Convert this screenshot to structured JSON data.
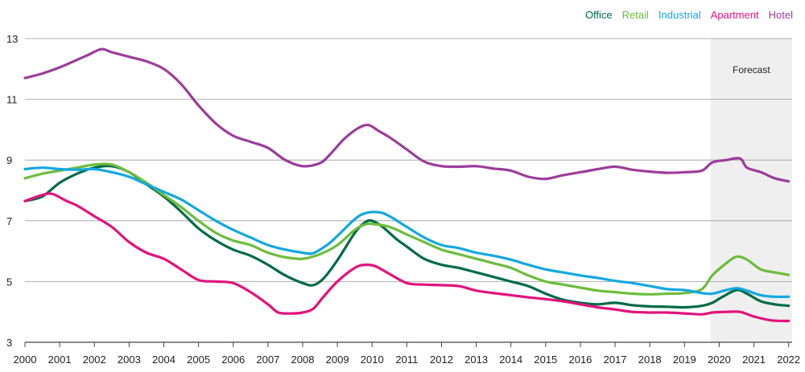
{
  "chart_data": {
    "type": "line",
    "title": "",
    "xlabel": "",
    "ylabel": "",
    "xlim": [
      2000,
      2022.1
    ],
    "ylim": [
      3,
      13
    ],
    "x_ticks": [
      "2000",
      "2001",
      "2002",
      "2003",
      "2004",
      "2005",
      "2006",
      "2007",
      "2008",
      "2009",
      "2010",
      "2011",
      "2012",
      "2013",
      "2014",
      "2015",
      "2016",
      "2017",
      "2018",
      "2019",
      "2020",
      "2021",
      "2022"
    ],
    "y_ticks": [
      "3",
      "5",
      "7",
      "9",
      "11",
      "13"
    ],
    "grid": "horizontal",
    "legend_position": "top-right",
    "forecast": {
      "label": "Forecast",
      "start": 2019.75,
      "end": 2022.1,
      "color": "#efefef"
    },
    "series": [
      {
        "name": "Office",
        "color": "#006b46",
        "points": [
          [
            2000,
            7.65
          ],
          [
            2000.5,
            7.8
          ],
          [
            2001,
            8.25
          ],
          [
            2001.5,
            8.55
          ],
          [
            2002,
            8.75
          ],
          [
            2002.5,
            8.8
          ],
          [
            2003,
            8.6
          ],
          [
            2003.5,
            8.2
          ],
          [
            2004,
            7.8
          ],
          [
            2004.5,
            7.3
          ],
          [
            2005,
            6.75
          ],
          [
            2005.5,
            6.35
          ],
          [
            2006,
            6.05
          ],
          [
            2006.5,
            5.85
          ],
          [
            2007,
            5.55
          ],
          [
            2007.5,
            5.2
          ],
          [
            2008,
            4.95
          ],
          [
            2008.3,
            4.88
          ],
          [
            2008.6,
            5.1
          ],
          [
            2009,
            5.7
          ],
          [
            2009.5,
            6.6
          ],
          [
            2009.8,
            6.95
          ],
          [
            2010,
            7.0
          ],
          [
            2010.3,
            6.8
          ],
          [
            2010.7,
            6.4
          ],
          [
            2011,
            6.15
          ],
          [
            2011.5,
            5.75
          ],
          [
            2012,
            5.55
          ],
          [
            2012.5,
            5.45
          ],
          [
            2013,
            5.3
          ],
          [
            2013.5,
            5.15
          ],
          [
            2014,
            5.0
          ],
          [
            2014.5,
            4.85
          ],
          [
            2015,
            4.6
          ],
          [
            2015.5,
            4.4
          ],
          [
            2016,
            4.3
          ],
          [
            2016.5,
            4.25
          ],
          [
            2017,
            4.3
          ],
          [
            2017.5,
            4.22
          ],
          [
            2018,
            4.18
          ],
          [
            2018.5,
            4.17
          ],
          [
            2019,
            4.15
          ],
          [
            2019.5,
            4.2
          ],
          [
            2019.8,
            4.3
          ],
          [
            2020.1,
            4.5
          ],
          [
            2020.5,
            4.72
          ],
          [
            2020.8,
            4.6
          ],
          [
            2021.2,
            4.35
          ],
          [
            2021.6,
            4.25
          ],
          [
            2022,
            4.2
          ]
        ]
      },
      {
        "name": "Retail",
        "color": "#6cbd3c",
        "points": [
          [
            2000,
            8.4
          ],
          [
            2000.5,
            8.55
          ],
          [
            2001,
            8.65
          ],
          [
            2001.5,
            8.75
          ],
          [
            2002,
            8.85
          ],
          [
            2002.5,
            8.85
          ],
          [
            2003,
            8.6
          ],
          [
            2003.5,
            8.25
          ],
          [
            2004,
            7.85
          ],
          [
            2004.5,
            7.45
          ],
          [
            2005,
            7.0
          ],
          [
            2005.5,
            6.6
          ],
          [
            2006,
            6.35
          ],
          [
            2006.5,
            6.2
          ],
          [
            2007,
            5.95
          ],
          [
            2007.5,
            5.8
          ],
          [
            2008,
            5.75
          ],
          [
            2008.5,
            5.9
          ],
          [
            2009,
            6.2
          ],
          [
            2009.5,
            6.7
          ],
          [
            2009.8,
            6.88
          ],
          [
            2010,
            6.9
          ],
          [
            2010.5,
            6.8
          ],
          [
            2011,
            6.55
          ],
          [
            2011.5,
            6.3
          ],
          [
            2012,
            6.05
          ],
          [
            2012.5,
            5.9
          ],
          [
            2013,
            5.75
          ],
          [
            2013.5,
            5.6
          ],
          [
            2014,
            5.45
          ],
          [
            2014.5,
            5.2
          ],
          [
            2015,
            5.0
          ],
          [
            2015.5,
            4.9
          ],
          [
            2016,
            4.8
          ],
          [
            2016.5,
            4.7
          ],
          [
            2017,
            4.65
          ],
          [
            2017.5,
            4.6
          ],
          [
            2018,
            4.58
          ],
          [
            2018.5,
            4.6
          ],
          [
            2019,
            4.62
          ],
          [
            2019.5,
            4.75
          ],
          [
            2019.8,
            5.2
          ],
          [
            2020.2,
            5.6
          ],
          [
            2020.5,
            5.82
          ],
          [
            2020.8,
            5.72
          ],
          [
            2021.2,
            5.4
          ],
          [
            2021.6,
            5.3
          ],
          [
            2022,
            5.22
          ]
        ]
      },
      {
        "name": "Industrial",
        "color": "#13a8e0",
        "points": [
          [
            2000,
            8.7
          ],
          [
            2000.5,
            8.75
          ],
          [
            2001,
            8.7
          ],
          [
            2001.5,
            8.68
          ],
          [
            2002,
            8.7
          ],
          [
            2002.5,
            8.6
          ],
          [
            2003,
            8.45
          ],
          [
            2003.5,
            8.2
          ],
          [
            2004,
            7.95
          ],
          [
            2004.5,
            7.7
          ],
          [
            2005,
            7.35
          ],
          [
            2005.5,
            7.0
          ],
          [
            2006,
            6.7
          ],
          [
            2006.5,
            6.45
          ],
          [
            2007,
            6.2
          ],
          [
            2007.5,
            6.05
          ],
          [
            2008,
            5.95
          ],
          [
            2008.3,
            5.93
          ],
          [
            2008.7,
            6.2
          ],
          [
            2009,
            6.5
          ],
          [
            2009.5,
            7.05
          ],
          [
            2009.8,
            7.25
          ],
          [
            2010.2,
            7.28
          ],
          [
            2010.5,
            7.15
          ],
          [
            2011,
            6.8
          ],
          [
            2011.5,
            6.45
          ],
          [
            2012,
            6.2
          ],
          [
            2012.5,
            6.1
          ],
          [
            2013,
            5.95
          ],
          [
            2013.5,
            5.85
          ],
          [
            2014,
            5.72
          ],
          [
            2014.5,
            5.55
          ],
          [
            2015,
            5.4
          ],
          [
            2015.5,
            5.3
          ],
          [
            2016,
            5.2
          ],
          [
            2016.5,
            5.12
          ],
          [
            2017,
            5.02
          ],
          [
            2017.5,
            4.95
          ],
          [
            2018,
            4.85
          ],
          [
            2018.5,
            4.75
          ],
          [
            2019,
            4.72
          ],
          [
            2019.5,
            4.62
          ],
          [
            2019.8,
            4.6
          ],
          [
            2020.2,
            4.72
          ],
          [
            2020.5,
            4.78
          ],
          [
            2020.8,
            4.7
          ],
          [
            2021.2,
            4.55
          ],
          [
            2021.6,
            4.5
          ],
          [
            2022,
            4.5
          ]
        ]
      },
      {
        "name": "Apartment",
        "color": "#e2137c",
        "points": [
          [
            2000,
            7.65
          ],
          [
            2000.5,
            7.85
          ],
          [
            2000.8,
            7.88
          ],
          [
            2001.2,
            7.65
          ],
          [
            2001.5,
            7.5
          ],
          [
            2002,
            7.15
          ],
          [
            2002.5,
            6.8
          ],
          [
            2003,
            6.3
          ],
          [
            2003.5,
            5.95
          ],
          [
            2004,
            5.75
          ],
          [
            2004.5,
            5.4
          ],
          [
            2005,
            5.05
          ],
          [
            2005.5,
            5.0
          ],
          [
            2006,
            4.95
          ],
          [
            2006.5,
            4.65
          ],
          [
            2007,
            4.25
          ],
          [
            2007.3,
            3.98
          ],
          [
            2007.7,
            3.95
          ],
          [
            2008,
            3.98
          ],
          [
            2008.3,
            4.1
          ],
          [
            2008.6,
            4.5
          ],
          [
            2009,
            5.0
          ],
          [
            2009.5,
            5.45
          ],
          [
            2009.8,
            5.55
          ],
          [
            2010.1,
            5.5
          ],
          [
            2010.5,
            5.25
          ],
          [
            2011,
            4.95
          ],
          [
            2011.5,
            4.9
          ],
          [
            2012,
            4.88
          ],
          [
            2012.5,
            4.85
          ],
          [
            2013,
            4.7
          ],
          [
            2013.5,
            4.62
          ],
          [
            2014,
            4.55
          ],
          [
            2014.5,
            4.48
          ],
          [
            2015,
            4.42
          ],
          [
            2015.5,
            4.35
          ],
          [
            2016,
            4.25
          ],
          [
            2016.5,
            4.15
          ],
          [
            2017,
            4.08
          ],
          [
            2017.5,
            4.0
          ],
          [
            2018,
            3.98
          ],
          [
            2018.5,
            3.98
          ],
          [
            2019,
            3.95
          ],
          [
            2019.5,
            3.92
          ],
          [
            2019.8,
            3.98
          ],
          [
            2020.2,
            4.0
          ],
          [
            2020.6,
            4.0
          ],
          [
            2021,
            3.85
          ],
          [
            2021.5,
            3.72
          ],
          [
            2022,
            3.7
          ]
        ]
      },
      {
        "name": "Hotel",
        "color": "#9b3d9b",
        "points": [
          [
            2000,
            11.7
          ],
          [
            2000.5,
            11.85
          ],
          [
            2001,
            12.05
          ],
          [
            2001.5,
            12.3
          ],
          [
            2001.8,
            12.45
          ],
          [
            2002.2,
            12.65
          ],
          [
            2002.5,
            12.55
          ],
          [
            2003,
            12.4
          ],
          [
            2003.5,
            12.25
          ],
          [
            2004,
            12.0
          ],
          [
            2004.5,
            11.5
          ],
          [
            2005,
            10.8
          ],
          [
            2005.5,
            10.2
          ],
          [
            2006,
            9.8
          ],
          [
            2006.5,
            9.6
          ],
          [
            2007,
            9.4
          ],
          [
            2007.5,
            9.0
          ],
          [
            2008,
            8.8
          ],
          [
            2008.5,
            8.9
          ],
          [
            2008.8,
            9.2
          ],
          [
            2009.2,
            9.7
          ],
          [
            2009.6,
            10.05
          ],
          [
            2009.9,
            10.15
          ],
          [
            2010.2,
            9.95
          ],
          [
            2010.5,
            9.75
          ],
          [
            2011,
            9.35
          ],
          [
            2011.5,
            8.95
          ],
          [
            2012,
            8.8
          ],
          [
            2012.5,
            8.78
          ],
          [
            2013,
            8.8
          ],
          [
            2013.5,
            8.72
          ],
          [
            2014,
            8.65
          ],
          [
            2014.5,
            8.45
          ],
          [
            2015,
            8.38
          ],
          [
            2015.5,
            8.5
          ],
          [
            2016,
            8.6
          ],
          [
            2016.5,
            8.7
          ],
          [
            2017,
            8.78
          ],
          [
            2017.5,
            8.68
          ],
          [
            2018,
            8.62
          ],
          [
            2018.5,
            8.58
          ],
          [
            2019,
            8.6
          ],
          [
            2019.5,
            8.65
          ],
          [
            2019.8,
            8.92
          ],
          [
            2020.2,
            9.0
          ],
          [
            2020.6,
            9.05
          ],
          [
            2020.8,
            8.75
          ],
          [
            2021.2,
            8.6
          ],
          [
            2021.6,
            8.4
          ],
          [
            2022,
            8.3
          ]
        ]
      }
    ]
  }
}
